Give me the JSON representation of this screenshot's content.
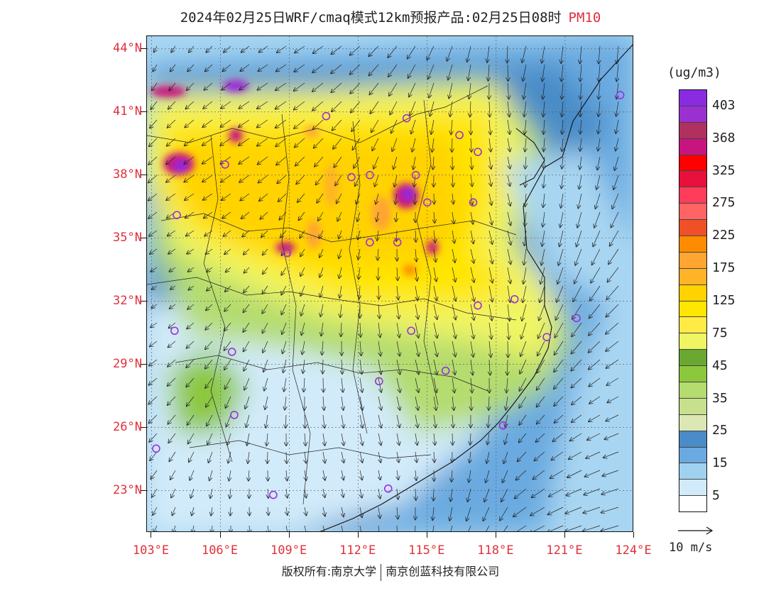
{
  "title": {
    "text": "2024年02月25日WRF/cmaq模式12km预报产品:02月25日08时",
    "variable": "PM10"
  },
  "map": {
    "lon_range": [
      102.8,
      124
    ],
    "lat_range": [
      21.0,
      44.6
    ],
    "lat_ticks": [
      {
        "value": 44,
        "label": "44°N"
      },
      {
        "value": 41,
        "label": "41°N"
      },
      {
        "value": 38,
        "label": "38°N"
      },
      {
        "value": 35,
        "label": "35°N"
      },
      {
        "value": 32,
        "label": "32°N"
      },
      {
        "value": 29,
        "label": "29°N"
      },
      {
        "value": 26,
        "label": "26°N"
      },
      {
        "value": 23,
        "label": "23°N"
      }
    ],
    "lon_ticks": [
      {
        "value": 103,
        "label": "103°E"
      },
      {
        "value": 106,
        "label": "106°E"
      },
      {
        "value": 109,
        "label": "109°E"
      },
      {
        "value": 112,
        "label": "112°E"
      },
      {
        "value": 115,
        "label": "115°E"
      },
      {
        "value": 118,
        "label": "118°E"
      },
      {
        "value": 121,
        "label": "121°E"
      },
      {
        "value": 124,
        "label": "124°E"
      }
    ],
    "city_marker_color": "#9b30e0"
  },
  "colorbar": {
    "unit": "(ug/m3)",
    "labels": [
      "403",
      "368",
      "325",
      "275",
      "225",
      "175",
      "125",
      "75",
      "45",
      "35",
      "25",
      "15",
      "5"
    ],
    "colors": [
      "#8a2be2",
      "#9b30d0",
      "#b03060",
      "#c8147e",
      "#ff0000",
      "#e8103c",
      "#ff3c5a",
      "#ff6464",
      "#f05028",
      "#ff8c00",
      "#ffa532",
      "#ffb428",
      "#ffd200",
      "#ffe600",
      "#ffea46",
      "#f0f564",
      "#6aa832",
      "#8cc83c",
      "#b4dc6e",
      "#c8e08c",
      "#dce8b4",
      "#4a8cc8",
      "#6aaae0",
      "#a0d2f0",
      "#d2ebfa",
      "#ffffff"
    ]
  },
  "wind_reference": {
    "label": "10 m/s"
  },
  "footer": {
    "copyright": "版权所有:南京大学",
    "company": "南京创蓝科技有限公司"
  }
}
